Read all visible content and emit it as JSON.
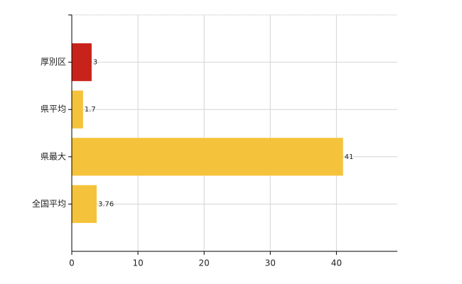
{
  "chart_data": {
    "type": "hbar",
    "categories": [
      "厚別区",
      "県平均",
      "県最大",
      "全国平均"
    ],
    "values": [
      3,
      1.7,
      41,
      3.76
    ],
    "colors": [
      "#c8231a",
      "#f5c33b",
      "#f5c33b",
      "#f5c33b"
    ],
    "xlim": [
      0,
      49.2
    ],
    "xticks": [
      0,
      10,
      20,
      30,
      40
    ],
    "grid": true
  }
}
